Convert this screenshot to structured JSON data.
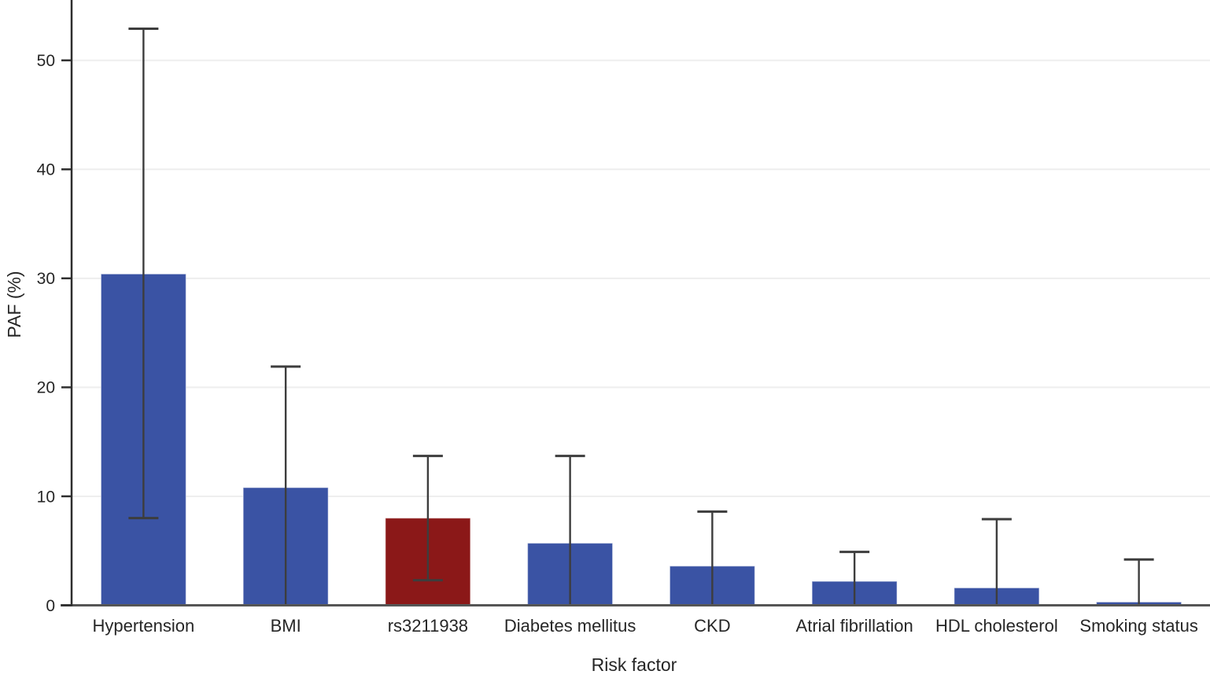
{
  "figure": {
    "background_color": "#ffffff",
    "axis_line_color": "#2e2e2e",
    "baseline_color": "#555555",
    "gridline_color": "#eeeeee",
    "errorbar_color": "#3d3d3d",
    "text_color": "#262626",
    "bar_blue": "#3A53A4",
    "bar_red": "#8B1818"
  },
  "chart_data": {
    "type": "bar",
    "title": "",
    "xlabel": "Risk factor",
    "ylabel": "PAF (%)",
    "categories": [
      "Hypertension",
      "BMI",
      "rs3211938",
      "Diabetes mellitus",
      "CKD",
      "Atrial fibrillation",
      "HDL cholesterol",
      "Smoking status"
    ],
    "values": [
      30.4,
      10.8,
      8.0,
      5.7,
      3.6,
      2.2,
      1.6,
      0.3
    ],
    "error_low": [
      8.0,
      0.0,
      2.3,
      0.0,
      0.0,
      0.0,
      0.0,
      0.0
    ],
    "error_high": [
      52.9,
      21.9,
      13.7,
      13.7,
      8.6,
      4.9,
      7.9,
      4.2
    ],
    "bar_colors": [
      "#3A53A4",
      "#3A53A4",
      "#8B1818",
      "#3A53A4",
      "#3A53A4",
      "#3A53A4",
      "#3A53A4",
      "#3A53A4"
    ],
    "highlight_index": 2,
    "highlight_category": "rs3211938",
    "yticks": [
      0,
      10,
      20,
      30,
      40,
      50
    ],
    "ylim": [
      0,
      55.5
    ],
    "grid": true,
    "legend_position": "none",
    "error_bars": true
  }
}
